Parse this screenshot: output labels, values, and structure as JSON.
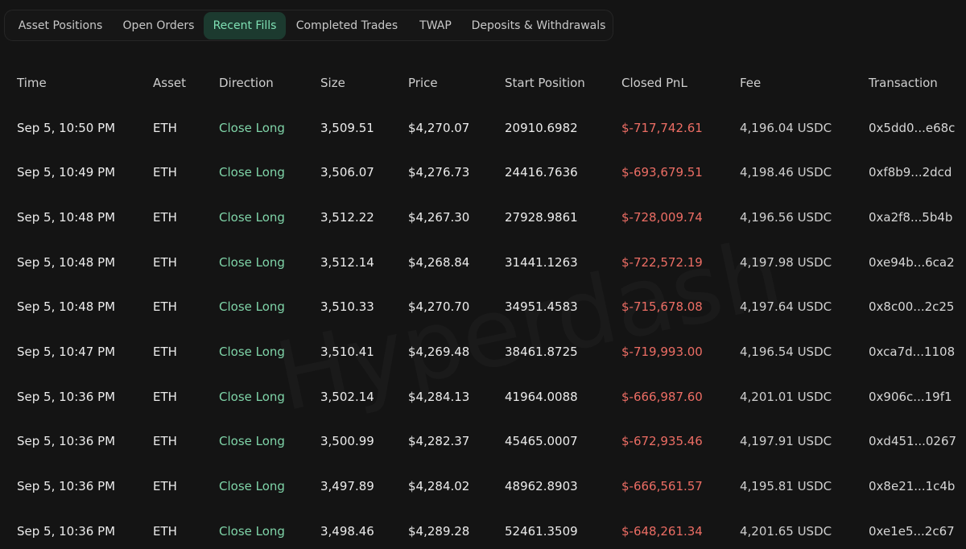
{
  "tabs": [
    {
      "label": "Asset Positions",
      "active": false
    },
    {
      "label": "Open Orders",
      "active": false
    },
    {
      "label": "Recent Fills",
      "active": true
    },
    {
      "label": "Completed Trades",
      "active": false
    },
    {
      "label": "TWAP",
      "active": false
    },
    {
      "label": "Deposits & Withdrawals",
      "active": false
    }
  ],
  "watermark": "Hyperdash",
  "table": {
    "headers": {
      "time": "Time",
      "asset": "Asset",
      "direction": "Direction",
      "size": "Size",
      "price": "Price",
      "start_position": "Start Position",
      "closed_pnl": "Closed PnL",
      "fee": "Fee",
      "transaction": "Transaction"
    },
    "rows": [
      {
        "time": "Sep 5, 10:50 PM",
        "asset": "ETH",
        "direction": "Close Long",
        "size": "3,509.51",
        "price": "$4,270.07",
        "start_position": "20910.6982",
        "closed_pnl": "$-717,742.61",
        "fee": "4,196.04 USDC",
        "transaction": "0x5dd0...e68c"
      },
      {
        "time": "Sep 5, 10:49 PM",
        "asset": "ETH",
        "direction": "Close Long",
        "size": "3,506.07",
        "price": "$4,276.73",
        "start_position": "24416.7636",
        "closed_pnl": "$-693,679.51",
        "fee": "4,198.46 USDC",
        "transaction": "0xf8b9...2dcd"
      },
      {
        "time": "Sep 5, 10:48 PM",
        "asset": "ETH",
        "direction": "Close Long",
        "size": "3,512.22",
        "price": "$4,267.30",
        "start_position": "27928.9861",
        "closed_pnl": "$-728,009.74",
        "fee": "4,196.56 USDC",
        "transaction": "0xa2f8...5b4b"
      },
      {
        "time": "Sep 5, 10:48 PM",
        "asset": "ETH",
        "direction": "Close Long",
        "size": "3,512.14",
        "price": "$4,268.84",
        "start_position": "31441.1263",
        "closed_pnl": "$-722,572.19",
        "fee": "4,197.98 USDC",
        "transaction": "0xe94b...6ca2"
      },
      {
        "time": "Sep 5, 10:48 PM",
        "asset": "ETH",
        "direction": "Close Long",
        "size": "3,510.33",
        "price": "$4,270.70",
        "start_position": "34951.4583",
        "closed_pnl": "$-715,678.08",
        "fee": "4,197.64 USDC",
        "transaction": "0x8c00...2c25"
      },
      {
        "time": "Sep 5, 10:47 PM",
        "asset": "ETH",
        "direction": "Close Long",
        "size": "3,510.41",
        "price": "$4,269.48",
        "start_position": "38461.8725",
        "closed_pnl": "$-719,993.00",
        "fee": "4,196.54 USDC",
        "transaction": "0xca7d...1108"
      },
      {
        "time": "Sep 5, 10:36 PM",
        "asset": "ETH",
        "direction": "Close Long",
        "size": "3,502.14",
        "price": "$4,284.13",
        "start_position": "41964.0088",
        "closed_pnl": "$-666,987.60",
        "fee": "4,201.01 USDC",
        "transaction": "0x906c...19f1"
      },
      {
        "time": "Sep 5, 10:36 PM",
        "asset": "ETH",
        "direction": "Close Long",
        "size": "3,500.99",
        "price": "$4,282.37",
        "start_position": "45465.0007",
        "closed_pnl": "$-672,935.46",
        "fee": "4,197.91 USDC",
        "transaction": "0xd451...0267"
      },
      {
        "time": "Sep 5, 10:36 PM",
        "asset": "ETH",
        "direction": "Close Long",
        "size": "3,497.89",
        "price": "$4,284.02",
        "start_position": "48962.8903",
        "closed_pnl": "$-666,561.57",
        "fee": "4,195.81 USDC",
        "transaction": "0x8e21...1c4b"
      },
      {
        "time": "Sep 5, 10:36 PM",
        "asset": "ETH",
        "direction": "Close Long",
        "size": "3,498.46",
        "price": "$4,289.28",
        "start_position": "52461.3509",
        "closed_pnl": "$-648,261.34",
        "fee": "4,201.65 USDC",
        "transaction": "0xe1e5...2c67"
      }
    ]
  }
}
